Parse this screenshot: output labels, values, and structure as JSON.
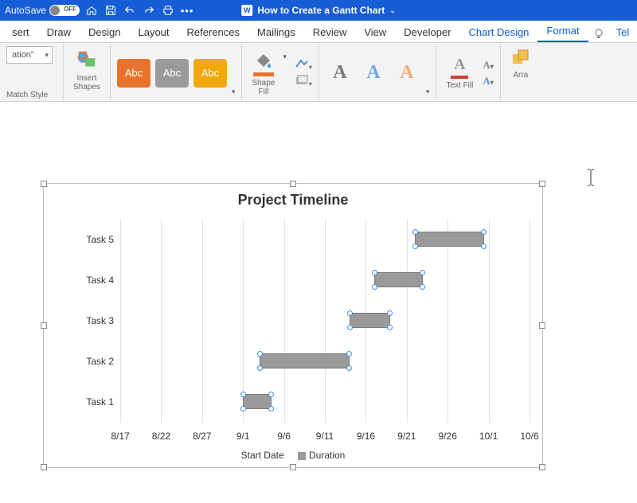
{
  "theme": {
    "titlebar_bg": "#175dd6",
    "accent": "#0b5fcc",
    "ribbon_bg": "#f3f3f3",
    "bar_fill": "#9a9a9a",
    "bar_handle": "#3b8de6",
    "gridline": "#e2e2e2"
  },
  "titlebar": {
    "autosave_label": "AutoSave",
    "autosave_state": "OFF",
    "doc_title": "How to Create a Gantt Chart",
    "doc_app_letter": "W"
  },
  "tabs": [
    "sert",
    "Draw",
    "Design",
    "Layout",
    "References",
    "Mailings",
    "Review",
    "View",
    "Developer",
    "Chart Design",
    "Format",
    "Tel"
  ],
  "tabs_active_index": 10,
  "ribbon": {
    "sel_dropdown": "ation\"",
    "match_style_label": "Match Style",
    "insert_shapes_label": "Insert\nShapes",
    "abc_chip_text": "Abc",
    "abc_colors": [
      "#e8732c",
      "#9a9a9a",
      "#f1a80c"
    ],
    "shape_fill_label": "Shape\nFill",
    "wordart_colors": [
      "#7a7a7a",
      "#6fa9e6",
      "#f0b07a"
    ],
    "text_fill_label": "Text Fill",
    "arrange_label": "Arra"
  },
  "chart": {
    "type": "gantt",
    "title": "Project Timeline",
    "y_categories": [
      "Task 5",
      "Task 4",
      "Task 3",
      "Task 2",
      "Task 1"
    ],
    "x_ticks": [
      "8/17",
      "8/22",
      "8/27",
      "9/1",
      "9/6",
      "9/11",
      "9/16",
      "9/21",
      "9/26",
      "10/1",
      "10/6"
    ],
    "x_tick_pct": [
      0,
      10,
      20,
      30,
      40,
      50,
      60,
      70,
      80,
      90,
      100
    ],
    "bars": [
      {
        "task": "Task 1",
        "start_pct": 30,
        "width_pct": 7,
        "y_pct": 90
      },
      {
        "task": "Task 2",
        "start_pct": 34,
        "width_pct": 22,
        "y_pct": 70
      },
      {
        "task": "Task 3",
        "start_pct": 56,
        "width_pct": 10,
        "y_pct": 50
      },
      {
        "task": "Task 4",
        "start_pct": 62,
        "width_pct": 12,
        "y_pct": 30
      },
      {
        "task": "Task 5",
        "start_pct": 72,
        "width_pct": 17,
        "y_pct": 10
      }
    ],
    "legend": {
      "series1": "Start Date",
      "series2": "Duration"
    },
    "background_color": "#ffffff"
  }
}
